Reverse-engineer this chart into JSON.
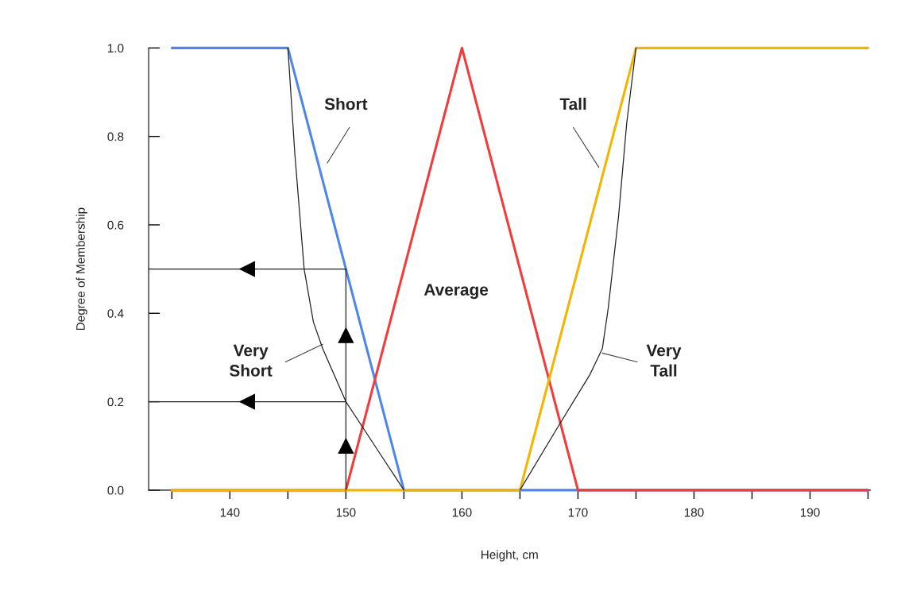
{
  "chart_data": {
    "type": "line",
    "xlabel": "Height, cm",
    "ylabel": "Degree of Membership",
    "xlim": [
      133,
      195.2
    ],
    "ylim": [
      0,
      1
    ],
    "xticks": [
      {
        "value": 135,
        "label": null
      },
      140,
      {
        "value": 145,
        "label": null
      },
      150,
      {
        "value": 155,
        "label": null
      },
      160,
      {
        "value": 165,
        "label": null
      },
      170,
      {
        "value": 175,
        "label": null
      },
      180,
      {
        "value": 185,
        "label": null
      },
      190,
      {
        "value": 195,
        "label": null
      }
    ],
    "yticks": [
      {
        "value": 0,
        "label": "0.0"
      },
      {
        "value": 0.2,
        "label": "0.2"
      },
      {
        "value": 0.4,
        "label": "0.4"
      },
      {
        "value": 0.6,
        "label": "0.6"
      },
      {
        "value": 0.8,
        "label": "0.8"
      },
      {
        "value": 1,
        "label": "1.0"
      }
    ],
    "grid": false,
    "legend": false,
    "marker": "none",
    "line_style": "solid",
    "series": [
      {
        "name": "Short",
        "color": "#4f87e8",
        "x": [
          135,
          145,
          155,
          195
        ],
        "values": [
          1,
          1,
          0,
          0
        ]
      },
      {
        "name": "Very Short",
        "color": "#222222",
        "x": [
          145,
          145.6,
          146.4,
          147.2,
          148,
          150,
          152.5,
          155
        ],
        "values": [
          1,
          0.76,
          0.5,
          0.38,
          0.32,
          0.2,
          0.1,
          0
        ]
      },
      {
        "name": "Average",
        "color": "#f03c3c",
        "x": [
          135,
          150,
          160,
          170,
          195
        ],
        "values": [
          0,
          0,
          1,
          0,
          0
        ]
      },
      {
        "name": "Tall",
        "color": "#f5b400",
        "x": [
          135,
          165,
          175,
          195
        ],
        "values": [
          0,
          0,
          1,
          1
        ]
      },
      {
        "name": "Very Tall",
        "color": "#222222",
        "x": [
          165,
          168.2,
          171,
          172.1,
          172.6,
          173.5,
          174.2,
          175
        ],
        "values": [
          0,
          0.14,
          0.26,
          0.32,
          0.41,
          0.62,
          0.83,
          1
        ]
      },
      {
        "color": "#222222",
        "x": [
          150,
          150,
          150
        ],
        "values": [
          0,
          0.2,
          0.5
        ]
      },
      {
        "color": "#222222",
        "x": [
          150,
          133
        ],
        "values": [
          0.5,
          0.5
        ]
      },
      {
        "color": "#222222",
        "x": [
          150,
          133
        ],
        "values": [
          0.2,
          0.2
        ]
      }
    ]
  }
}
